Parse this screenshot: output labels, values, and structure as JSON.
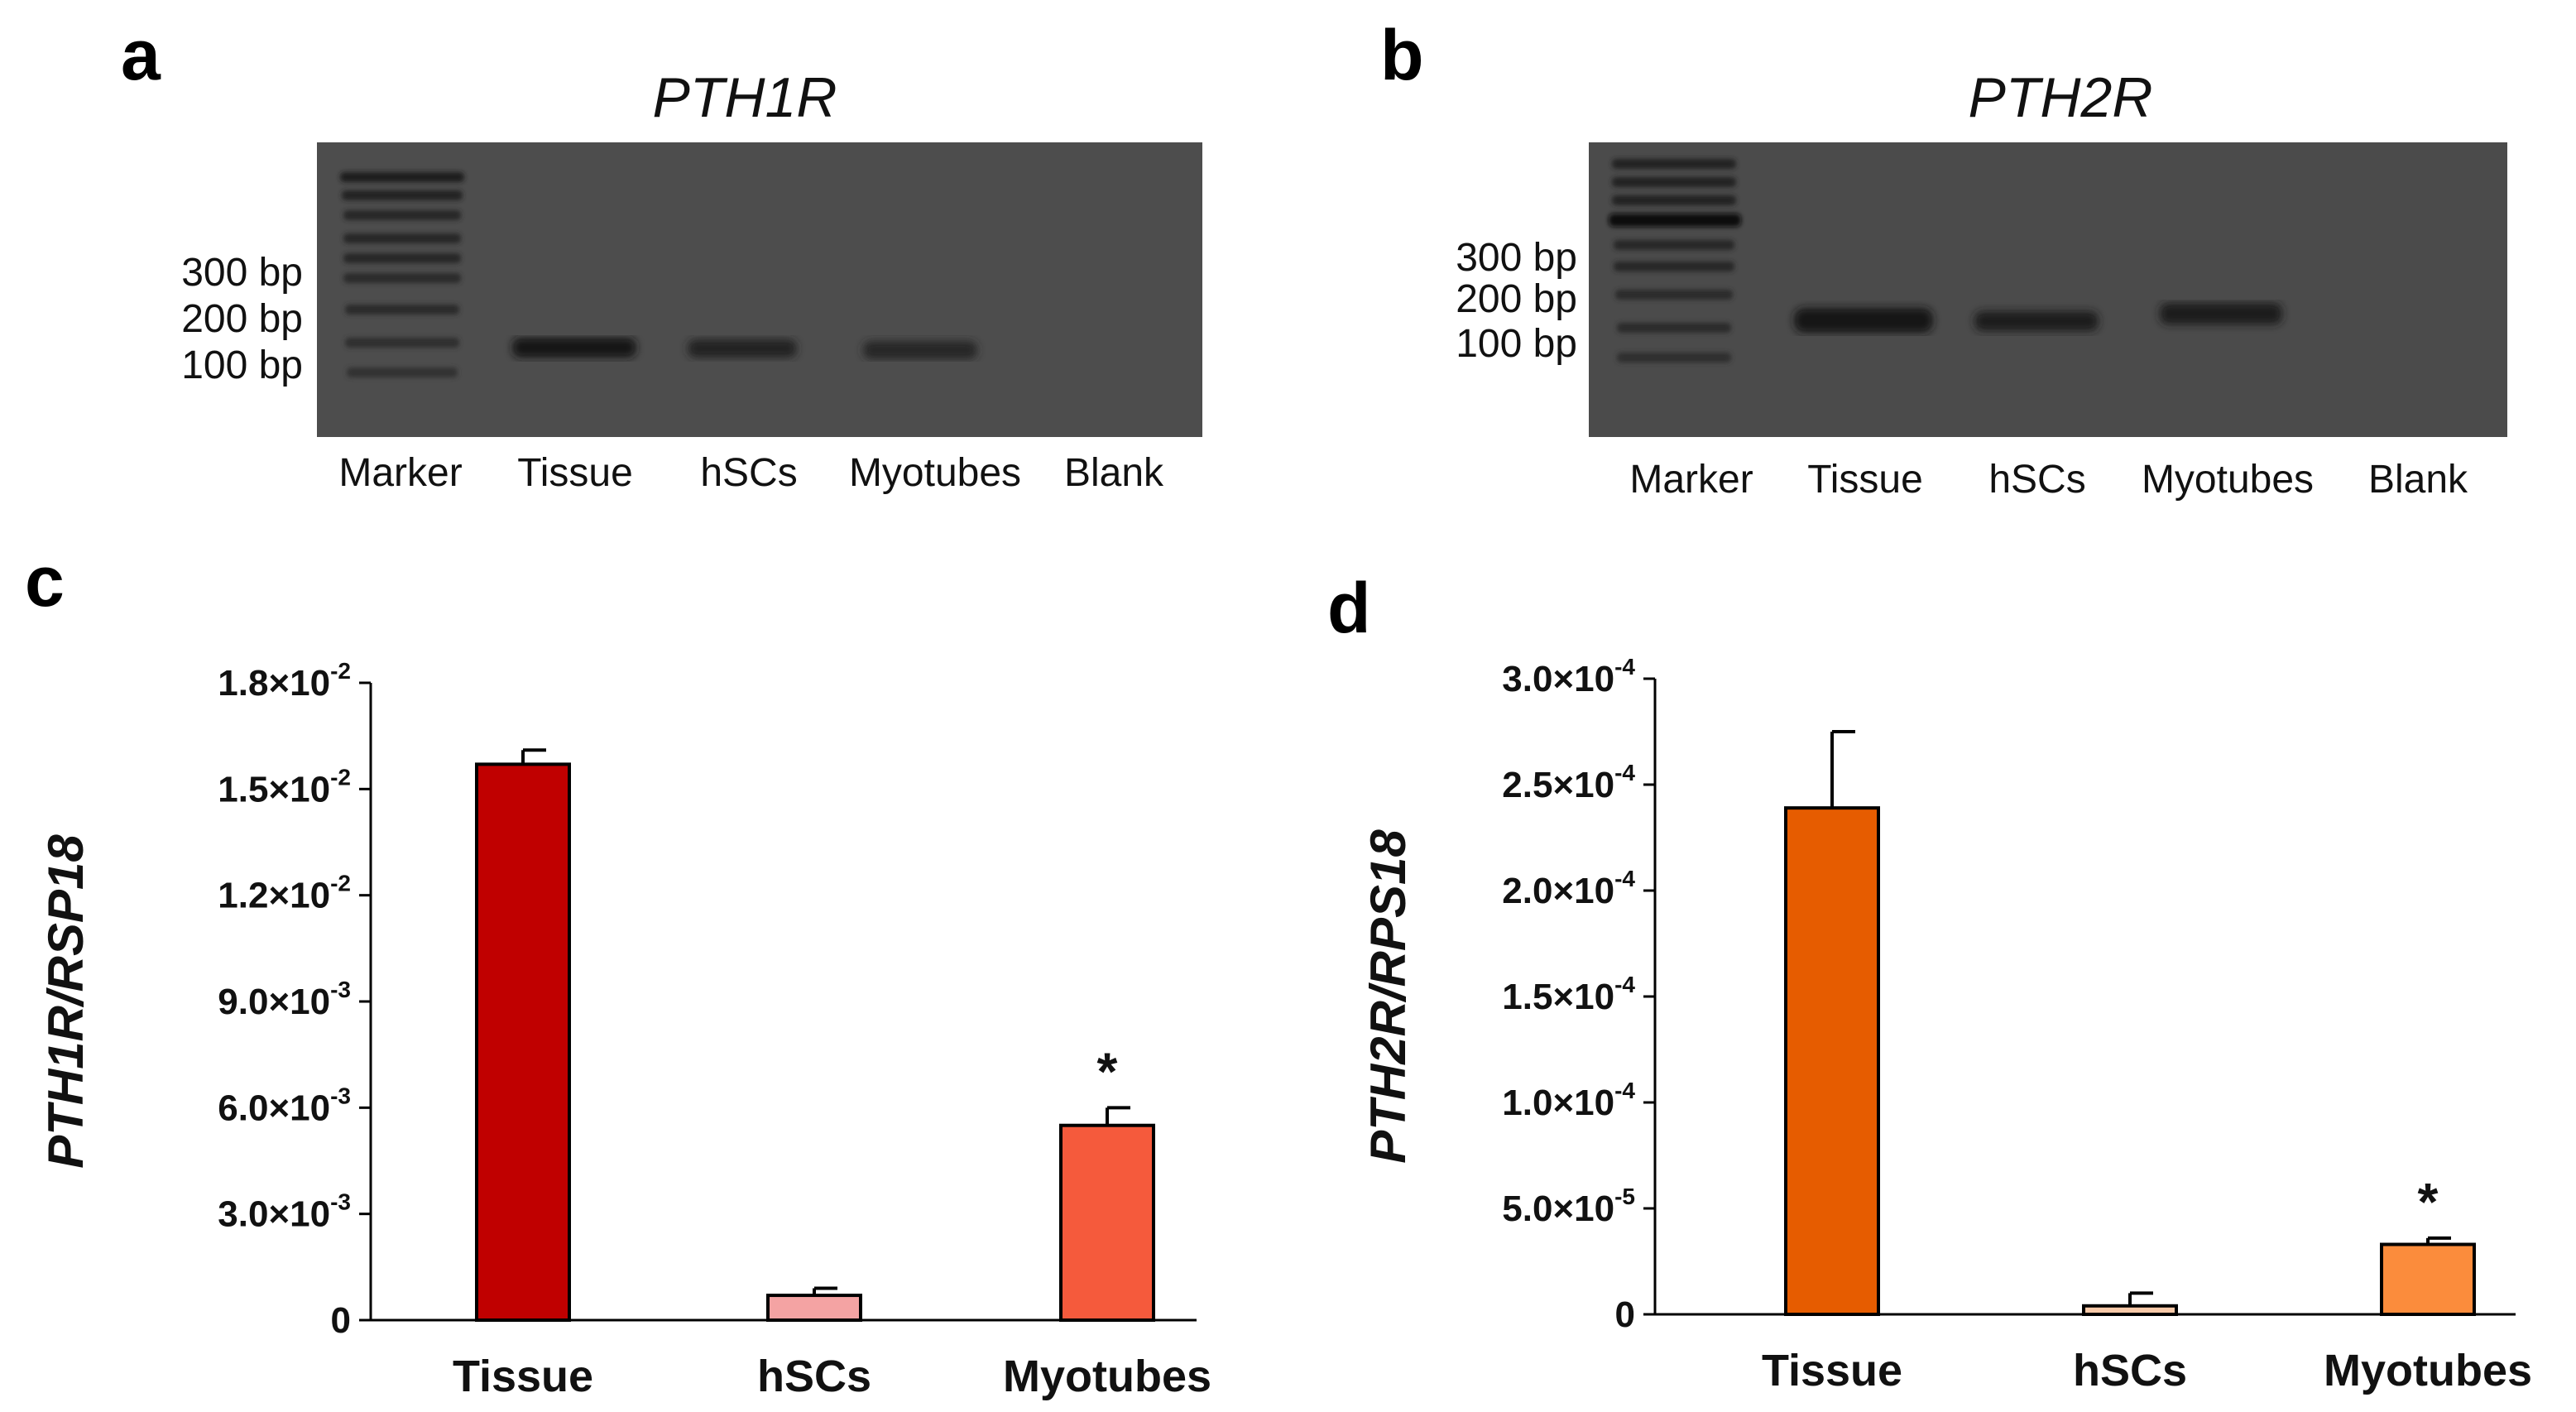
{
  "panels": {
    "a": "a",
    "b": "b",
    "c": "c",
    "d": "d"
  },
  "gels": [
    {
      "title": "PTH1R",
      "marker_labels": [
        "300 bp",
        "200 bp",
        "100 bp"
      ],
      "lanes": [
        "Marker",
        "Tissue",
        "hSCs",
        "Myotubes",
        "Blank"
      ]
    },
    {
      "title": "PTH2R",
      "marker_labels": [
        "300 bp",
        "200 bp",
        "100 bp"
      ],
      "lanes": [
        "Marker",
        "Tissue",
        "hSCs",
        "Myotubes",
        "Blank"
      ]
    }
  ],
  "chart_data": [
    {
      "type": "bar",
      "ylabel": "PTH1R/RSP18",
      "categories": [
        "Tissue",
        "hSCs",
        "Myotubes"
      ],
      "values": [
        0.0157,
        0.0007,
        0.0055
      ],
      "errors": [
        0.0004,
        0.0002,
        0.0005
      ],
      "significance": [
        "",
        "",
        "*"
      ],
      "colors": [
        "#c00000",
        "#f4a3a3",
        "#f55a3c"
      ],
      "ylim": [
        0,
        0.018
      ],
      "yticks": [
        0,
        0.003,
        0.006,
        0.009,
        0.012,
        0.015,
        0.018
      ],
      "ytick_labels": [
        {
          "base": "0",
          "exp": ""
        },
        {
          "base": "3.0×10",
          "exp": "-3"
        },
        {
          "base": "6.0×10",
          "exp": "-3"
        },
        {
          "base": "9.0×10",
          "exp": "-3"
        },
        {
          "base": "1.2×10",
          "exp": "-2"
        },
        {
          "base": "1.5×10",
          "exp": "-2"
        },
        {
          "base": "1.8×10",
          "exp": "-2"
        }
      ],
      "grid": false
    },
    {
      "type": "bar",
      "ylabel": "PTH2R/RPS18",
      "categories": [
        "Tissue",
        "hSCs",
        "Myotubes"
      ],
      "values": [
        0.000239,
        4e-06,
        3.3e-05
      ],
      "errors": [
        3.6e-05,
        6e-06,
        3e-06
      ],
      "significance": [
        "",
        "",
        "*"
      ],
      "colors": [
        "#e65c00",
        "#f8c9a8",
        "#fb8c3c"
      ],
      "ylim": [
        0,
        0.0003
      ],
      "yticks": [
        0,
        5e-05,
        0.0001,
        0.00015,
        0.0002,
        0.00025,
        0.0003
      ],
      "ytick_labels": [
        {
          "base": "0",
          "exp": ""
        },
        {
          "base": "5.0×10",
          "exp": "-5"
        },
        {
          "base": "1.0×10",
          "exp": "-4"
        },
        {
          "base": "1.5×10",
          "exp": "-4"
        },
        {
          "base": "2.0×10",
          "exp": "-4"
        },
        {
          "base": "2.5×10",
          "exp": "-4"
        },
        {
          "base": "3.0×10",
          "exp": "-4"
        }
      ],
      "grid": false
    }
  ]
}
